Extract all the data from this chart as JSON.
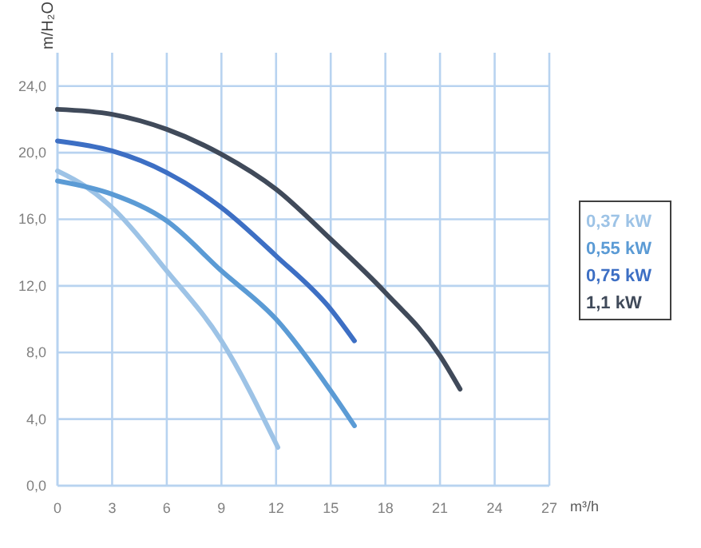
{
  "chart_data": {
    "type": "line",
    "ylabel": "m/H₂O",
    "xlabel": "m³/h",
    "xlim": [
      0,
      27
    ],
    "ylim": [
      0,
      26
    ],
    "xticks": [
      0,
      3,
      6,
      9,
      12,
      15,
      18,
      21,
      24,
      27
    ],
    "yticks": [
      {
        "value": 0,
        "label": "0,0"
      },
      {
        "value": 4,
        "label": "4,0"
      },
      {
        "value": 8,
        "label": "8,0"
      },
      {
        "value": 12,
        "label": "12,0"
      },
      {
        "value": 16,
        "label": "16,0"
      },
      {
        "value": 20,
        "label": "20,0"
      },
      {
        "value": 24,
        "label": "24,0"
      }
    ],
    "grid": true,
    "legend": "right",
    "marker": "none",
    "line_style": "solid",
    "series": [
      {
        "name": "0,37 kW",
        "color": "#9dc3e6",
        "x": [
          0,
          1.5,
          3,
          6,
          9,
          12.1
        ],
        "values": [
          18.9,
          18.0,
          16.7,
          12.9,
          8.7,
          2.3
        ]
      },
      {
        "name": "0,55 kW",
        "color": "#5b9bd5",
        "x": [
          0,
          3,
          6,
          9,
          12,
          15,
          16.3
        ],
        "values": [
          18.3,
          17.5,
          15.9,
          12.9,
          10.0,
          5.7,
          3.6
        ]
      },
      {
        "name": "0,75 kW",
        "color": "#3d6fc4",
        "x": [
          0,
          3,
          6,
          9,
          12,
          15,
          16.3
        ],
        "values": [
          20.7,
          20.1,
          18.8,
          16.7,
          13.8,
          10.6,
          8.7
        ]
      },
      {
        "name": "1,1 kW",
        "color": "#404a5a",
        "x": [
          0,
          3,
          6,
          9,
          12,
          15,
          18,
          21,
          22.1
        ],
        "values": [
          22.6,
          22.3,
          21.4,
          19.9,
          17.8,
          14.8,
          11.6,
          7.8,
          5.8
        ]
      }
    ]
  }
}
